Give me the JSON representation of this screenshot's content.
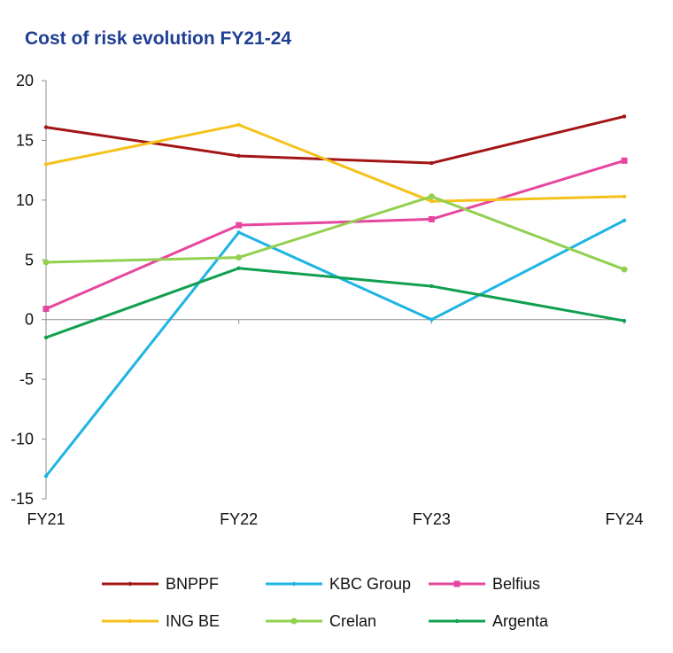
{
  "chart_data": {
    "type": "line",
    "title": "Cost of risk evolution FY21-24",
    "xlabel": "",
    "ylabel": "",
    "categories": [
      "FY21",
      "FY22",
      "FY23",
      "FY24"
    ],
    "ylim": [
      -15,
      20
    ],
    "yticks": [
      20,
      15,
      10,
      5,
      0,
      -5,
      -10,
      -15
    ],
    "grid": false,
    "legend": "bottom",
    "series": [
      {
        "name": "BNPPF",
        "color": "#a31515",
        "marker": "dot",
        "values": [
          16.1,
          13.7,
          13.1,
          17.0
        ]
      },
      {
        "name": "KBC Group",
        "color": "#1eb4e3",
        "marker": "dot",
        "values": [
          -13.1,
          7.3,
          0.0,
          8.3
        ]
      },
      {
        "name": "Belfius",
        "color": "#e6469f",
        "marker": "square",
        "values": [
          0.9,
          7.9,
          8.4,
          13.3
        ]
      },
      {
        "name": "ING BE",
        "color": "#f5c11b",
        "marker": "dot",
        "values": [
          13.0,
          16.3,
          9.9,
          10.3
        ]
      },
      {
        "name": "Crelan",
        "color": "#92d050",
        "marker": "circle",
        "values": [
          4.8,
          5.2,
          10.3,
          4.2
        ]
      },
      {
        "name": "Argenta",
        "color": "#10a050",
        "marker": "dot",
        "values": [
          -1.5,
          4.3,
          2.8,
          -0.1
        ]
      }
    ]
  }
}
